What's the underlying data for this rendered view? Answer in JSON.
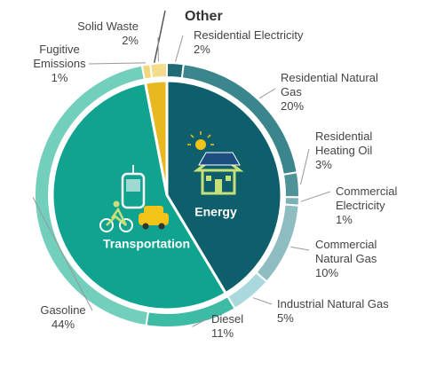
{
  "chart_data": {
    "type": "sunburst",
    "inner": {
      "categories": [
        "Energy",
        "Transportation",
        "Other"
      ],
      "values": [
        41,
        55,
        3
      ],
      "colors": [
        "#0e5f6b",
        "#10a38f",
        "#e8b820"
      ]
    },
    "outer": {
      "categories": [
        "Residential Electricity",
        "Residential Natural Gas",
        "Residential Heating Oil",
        "Commercial Electricity",
        "Commercial Natural Gas",
        "Industrial Natural Gas",
        "Diesel",
        "Gasoline",
        "Fugitive Emissions",
        "Solid Waste"
      ],
      "values": [
        2,
        20,
        3,
        1,
        10,
        5,
        11,
        44,
        1,
        2
      ],
      "value_labels": [
        "2%",
        "20%",
        "3%",
        "1%",
        "10%",
        "5%",
        "11%",
        "44%",
        "1%",
        "2%"
      ],
      "colors": [
        "#1f6b75",
        "#3b858c",
        "#4f9399",
        "#7eb0b5",
        "#8dbdc0",
        "#a9d9dd",
        "#3dbba5",
        "#72cfbb",
        "#f0d77a",
        "#f4dc8c"
      ]
    }
  }
}
